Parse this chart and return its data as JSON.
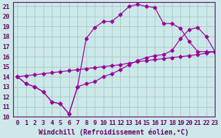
{
  "xlabel": "Windchill (Refroidissement éolien,°C)",
  "background_color": "#cce8e8",
  "grid_color": "#aacccc",
  "line_color": "#990099",
  "xlim": [
    -0.5,
    23
  ],
  "ylim": [
    10,
    21.4
  ],
  "xticks": [
    0,
    1,
    2,
    3,
    4,
    5,
    6,
    7,
    8,
    9,
    10,
    11,
    12,
    13,
    14,
    15,
    16,
    17,
    18,
    19,
    20,
    21,
    22,
    23
  ],
  "yticks": [
    10,
    11,
    12,
    13,
    14,
    15,
    16,
    17,
    18,
    19,
    20,
    21
  ],
  "line1_x": [
    0,
    1,
    2,
    3,
    4,
    5,
    6,
    7,
    8,
    9,
    10,
    11,
    12,
    13,
    14,
    15,
    16,
    17,
    18,
    19,
    20,
    21,
    22,
    23
  ],
  "line1_y": [
    14,
    13.3,
    13,
    12.5,
    11.5,
    11.3,
    10.3,
    13.0,
    17.8,
    18.9,
    19.5,
    19.5,
    20.2,
    21.0,
    21.2,
    21.0,
    20.9,
    19.3,
    19.3,
    18.8,
    17.5,
    16.5,
    16.5,
    16.5
  ],
  "line2_x": [
    0,
    1,
    2,
    3,
    4,
    5,
    6,
    7,
    8,
    9,
    10,
    11,
    12,
    13,
    14,
    15,
    16,
    17,
    18,
    19,
    20,
    21,
    22,
    23
  ],
  "line2_y": [
    14,
    13.3,
    13,
    12.5,
    11.5,
    11.3,
    10.3,
    13.0,
    13.3,
    13.5,
    14.0,
    14.3,
    14.7,
    15.2,
    15.6,
    15.9,
    16.1,
    16.2,
    16.6,
    17.8,
    18.7,
    18.9,
    18.0,
    16.5
  ],
  "line3_x": [
    0,
    1,
    2,
    3,
    4,
    5,
    6,
    7,
    8,
    9,
    10,
    11,
    12,
    13,
    14,
    15,
    16,
    17,
    18,
    19,
    20,
    21,
    22,
    23
  ],
  "line3_y": [
    14,
    14.1,
    14.2,
    14.3,
    14.4,
    14.5,
    14.6,
    14.7,
    14.8,
    14.9,
    15.0,
    15.1,
    15.2,
    15.35,
    15.5,
    15.6,
    15.7,
    15.8,
    15.9,
    16.0,
    16.1,
    16.2,
    16.35,
    16.5
  ],
  "font_color": "#660066",
  "tick_fontsize": 6.5,
  "label_fontsize": 7
}
